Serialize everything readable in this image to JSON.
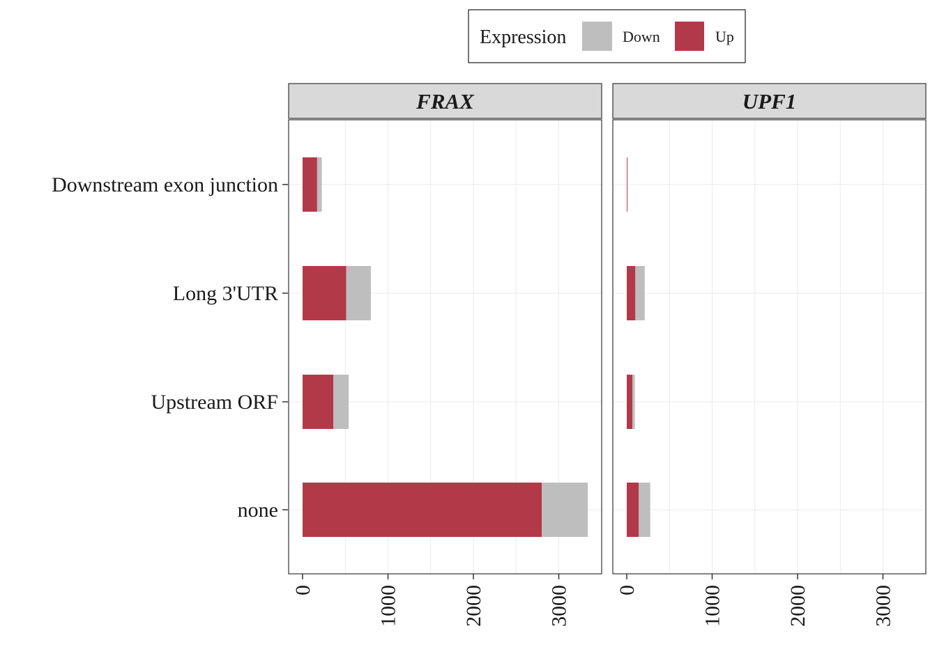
{
  "chart_data": {
    "type": "bar",
    "orientation": "horizontal",
    "stacked": true,
    "categories": [
      "Downstream exon junction",
      "Long 3'UTR",
      "Upstream ORF",
      "none"
    ],
    "xlim": [
      0,
      3400
    ],
    "x_ticks": [
      0,
      1000,
      2000,
      3000
    ],
    "x_tick_labels": [
      "0",
      "1000",
      "2000",
      "3000"
    ],
    "grid": true,
    "legend": {
      "title": "Expression",
      "placement": "top",
      "entries": [
        {
          "name": "Down",
          "color": "#bebebe"
        },
        {
          "name": "Up",
          "color": "#b23a48"
        }
      ]
    },
    "facets": [
      {
        "name": "FRAX",
        "series": [
          {
            "name": "Up",
            "values": [
              170,
              510,
              360,
              2800
            ]
          },
          {
            "name": "Down",
            "values": [
              55,
              290,
              180,
              540
            ]
          }
        ]
      },
      {
        "name": "UPF1",
        "series": [
          {
            "name": "Up",
            "values": [
              5,
              100,
              65,
              140
            ]
          },
          {
            "name": "Down",
            "values": [
              3,
              110,
              30,
              135
            ]
          }
        ]
      }
    ],
    "colors": {
      "up": "#b23a48",
      "down": "#bebebe",
      "strip_fill": "#d9d9d9",
      "panel_border": "#333333",
      "grid": "#ebebeb"
    }
  }
}
